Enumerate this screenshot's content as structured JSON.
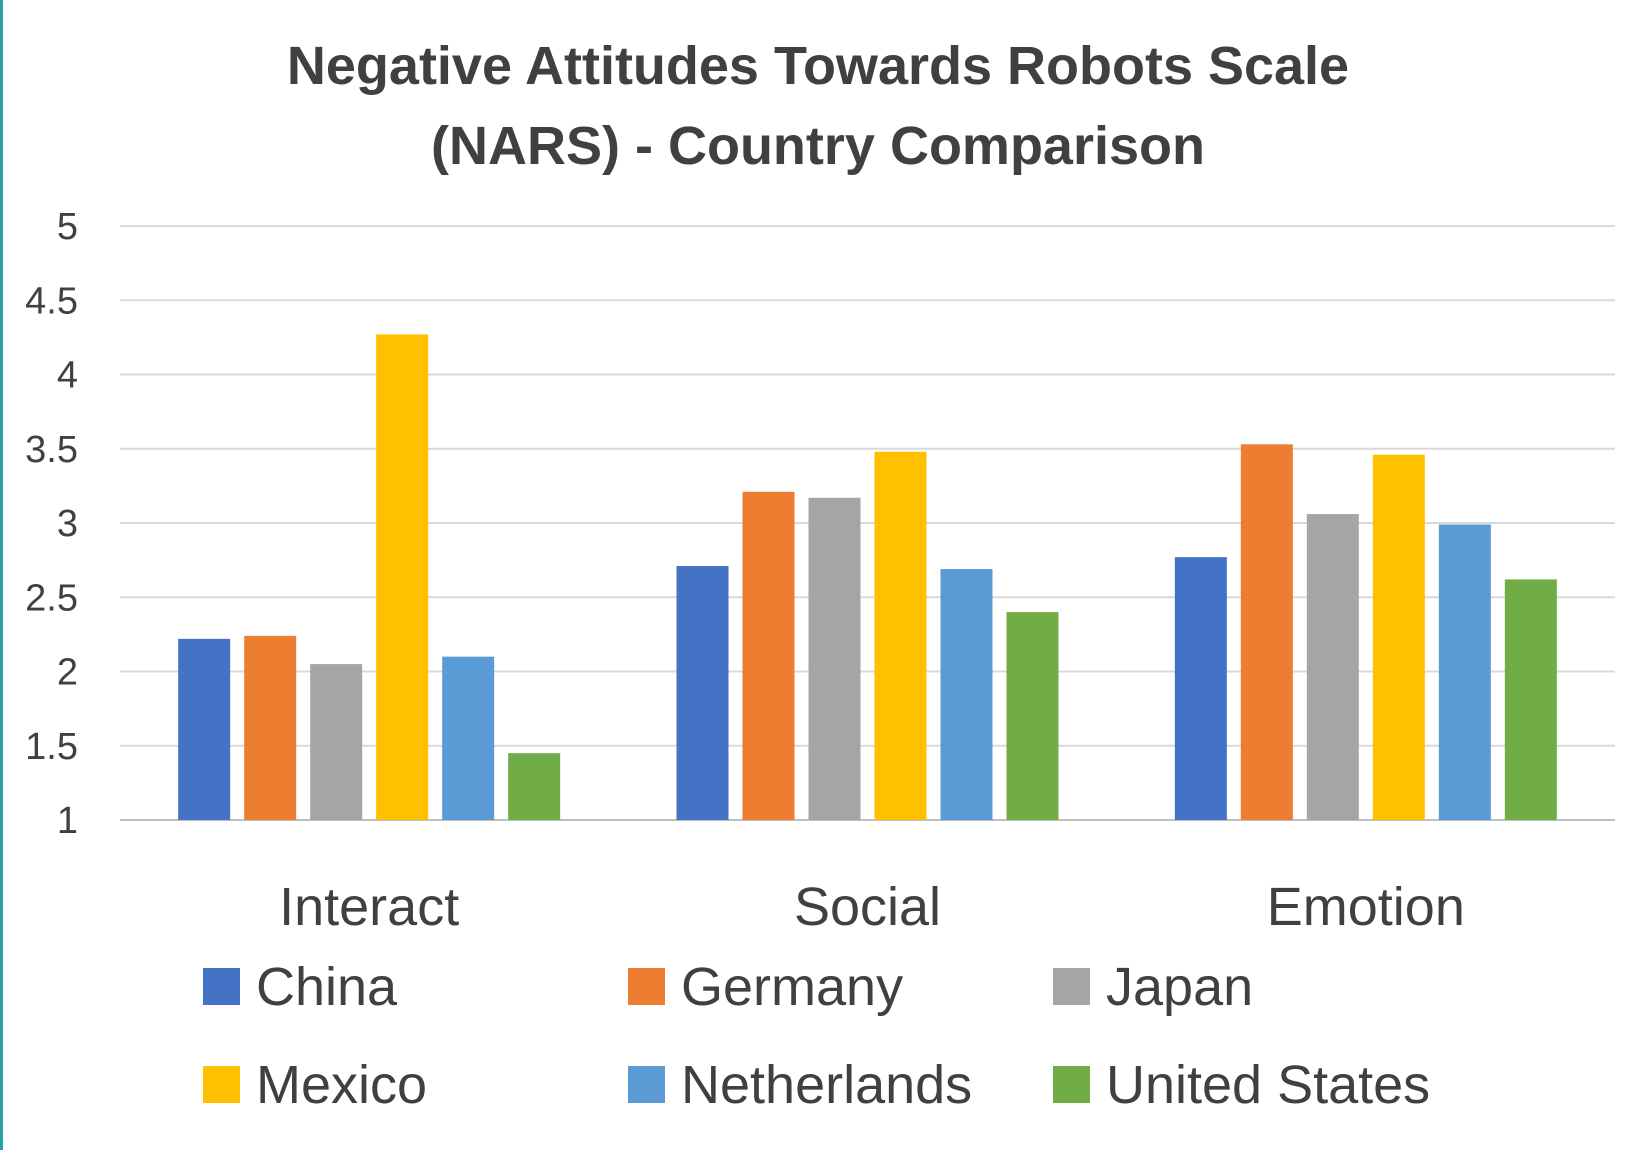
{
  "chart_data": {
    "type": "bar",
    "title_lines": [
      "Negative Attitudes Towards Robots Scale",
      "(NARS) - Country Comparison"
    ],
    "categories": [
      "Interact",
      "Social",
      "Emotion"
    ],
    "series": [
      {
        "name": "China",
        "color": "#4472C4",
        "values": [
          2.22,
          2.71,
          2.77
        ]
      },
      {
        "name": "Germany",
        "color": "#ED7D31",
        "values": [
          2.24,
          3.21,
          3.53
        ]
      },
      {
        "name": "Japan",
        "color": "#A5A5A5",
        "values": [
          2.05,
          3.17,
          3.06
        ]
      },
      {
        "name": "Mexico",
        "color": "#FFC000",
        "values": [
          4.27,
          3.48,
          3.46
        ]
      },
      {
        "name": "Netherlands",
        "color": "#5B9BD5",
        "values": [
          2.1,
          2.69,
          2.99
        ]
      },
      {
        "name": "United States",
        "color": "#70AD47",
        "values": [
          1.45,
          2.4,
          2.62
        ]
      }
    ],
    "ylim": [
      1,
      5
    ],
    "yticks": [
      1,
      1.5,
      2,
      2.5,
      3,
      3.5,
      4,
      4.5,
      5
    ],
    "grid": true,
    "legend_position": "bottom"
  }
}
